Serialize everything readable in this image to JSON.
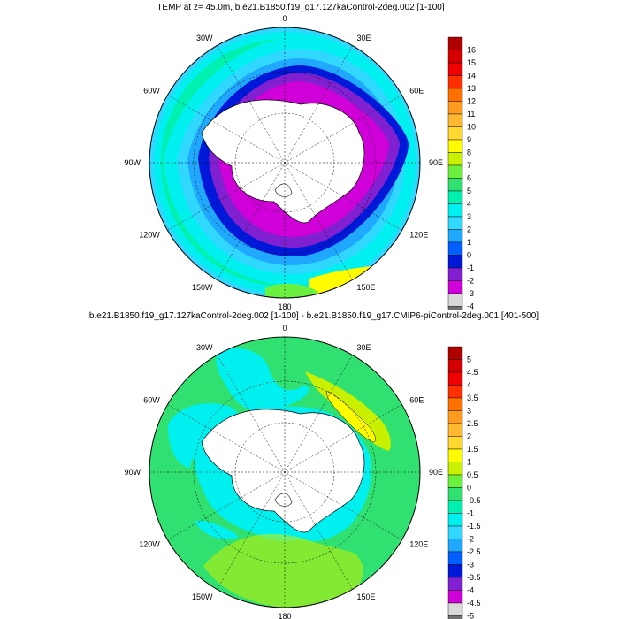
{
  "panel1": {
    "title": "TEMP at z=  45.0m, b.e21.B1850.f19_g17.127kaControl-2deg.002 [1-100]",
    "lon_labels": [
      "0",
      "30E",
      "60E",
      "90E",
      "120E",
      "150E",
      "180",
      "150W",
      "120W",
      "90W",
      "60W",
      "30W"
    ],
    "colorbar_labels": [
      "16",
      "15",
      "14",
      "13",
      "12",
      "11",
      "10",
      "9",
      "8",
      "7",
      "6",
      "5",
      "4",
      "3",
      "2",
      "1",
      "0",
      "-1",
      "-2",
      "-3",
      "-4"
    ],
    "colorbar_colors": [
      "#b00000",
      "#d40000",
      "#f00000",
      "#ff3000",
      "#ff7000",
      "#ff9c20",
      "#ffb830",
      "#ffd830",
      "#fffb00",
      "#c8f000",
      "#6cf040",
      "#30e070",
      "#00f0b0",
      "#00f0f0",
      "#30d8ff",
      "#20a8ff",
      "#0060ff",
      "#0018d8",
      "#8020d0",
      "#d000d8",
      "#d8d8d8",
      "#707070"
    ]
  },
  "panel2": {
    "title": "b.e21.B1850.f19_g17.127kaControl-2deg.002 [1-100] - b.e21.B1850.f19_g17.CMIP6-piControl-2deg.001 [401-500]",
    "lon_labels": [
      "0",
      "30E",
      "60E",
      "90E",
      "120E",
      "150E",
      "180",
      "150W",
      "120W",
      "90W",
      "60W",
      "30W"
    ],
    "colorbar_labels": [
      "5",
      "4.5",
      "4",
      "3.5",
      "3",
      "2.5",
      "2",
      "1.5",
      "1",
      "0.5",
      "0",
      "-0.5",
      "-1",
      "-1.5",
      "-2",
      "-2.5",
      "-3",
      "-3.5",
      "-4",
      "-4.5",
      "-5"
    ],
    "colorbar_colors": [
      "#b00000",
      "#d40000",
      "#f00000",
      "#ff3000",
      "#ff7000",
      "#ff9c20",
      "#ffb830",
      "#ffd830",
      "#fffb00",
      "#c8f000",
      "#6cf040",
      "#30e070",
      "#00f0b0",
      "#00f0f0",
      "#30d8ff",
      "#20a8ff",
      "#0060ff",
      "#0018d8",
      "#8020d0",
      "#d000d8",
      "#d8d8d8",
      "#707070"
    ]
  }
}
